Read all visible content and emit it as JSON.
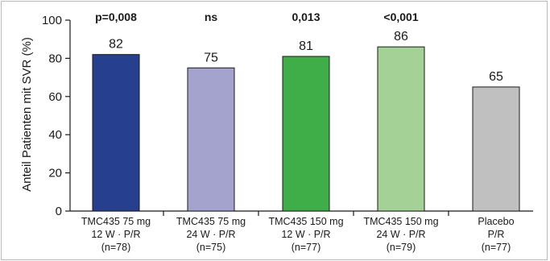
{
  "chart_data": {
    "type": "bar",
    "title": "",
    "xlabel": "",
    "ylabel": "Anteil Patienten mit SVR (%)",
    "ylim": [
      0,
      100
    ],
    "yticks": [
      0,
      20,
      40,
      60,
      80,
      100
    ],
    "grid": false,
    "legend": "none",
    "categories": [
      {
        "lines": [
          "TMC435 75 mg",
          "12 W · P/R",
          "(n=78)"
        ]
      },
      {
        "lines": [
          "TMC435 75 mg",
          "24 W · P/R",
          "(n=75)"
        ]
      },
      {
        "lines": [
          "TMC435 150 mg",
          "12 W · P/R",
          "(n=77)"
        ]
      },
      {
        "lines": [
          "TMC435 150 mg",
          "24 W · P/R",
          "(n=79)"
        ]
      },
      {
        "lines": [
          "Placebo",
          "P/R",
          "(n=77)"
        ]
      }
    ],
    "values": [
      82,
      75,
      81,
      86,
      65
    ],
    "value_labels": [
      "82",
      "75",
      "81",
      "86",
      "65"
    ],
    "significance": [
      "p=0,008",
      "ns",
      "0,013",
      "<0,001",
      ""
    ],
    "colors": [
      "#263f8f",
      "#a4a3cd",
      "#3fae49",
      "#a4d296",
      "#c0c0c0"
    ]
  }
}
